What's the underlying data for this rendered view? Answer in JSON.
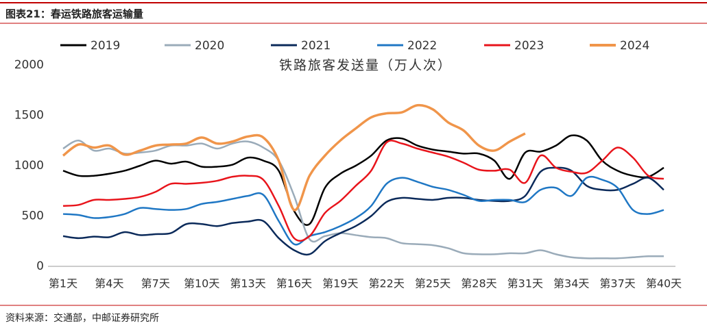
{
  "header": "图表21：春运铁路旅客运输量",
  "source": "资料来源：交通部，中邮证券研究所",
  "chart_data": {
    "type": "line",
    "title": "铁路旅客发送量（万人次）",
    "categories": [
      "第1天",
      null,
      null,
      "第4天",
      null,
      null,
      "第7天",
      null,
      null,
      "第10天",
      null,
      null,
      "第13天",
      null,
      null,
      "第16天",
      null,
      null,
      "第19天",
      null,
      null,
      "第22天",
      null,
      null,
      "第25天",
      null,
      null,
      "第28天",
      null,
      null,
      "第31天",
      null,
      null,
      "第34天",
      null,
      null,
      "第37天",
      null,
      null,
      "第40天"
    ],
    "ylim": [
      0,
      2000
    ],
    "yticks": [
      0,
      500,
      1000,
      1500,
      2000
    ],
    "grid": false,
    "series": [
      {
        "name": "2019",
        "color": "#000000",
        "values": [
          950,
          900,
          900,
          920,
          950,
          1000,
          1050,
          1020,
          1040,
          990,
          990,
          1010,
          1080,
          1050,
          950,
          550,
          420,
          780,
          920,
          1000,
          1100,
          1250,
          1270,
          1200,
          1160,
          1140,
          1120,
          1120,
          1050,
          870,
          1130,
          1140,
          1200,
          1300,
          1250,
          1050,
          950,
          900,
          890,
          980
        ]
      },
      {
        "name": "2020",
        "color": "#9aabb9",
        "values": [
          1170,
          1250,
          1150,
          1170,
          1120,
          1130,
          1150,
          1200,
          1200,
          1220,
          1170,
          1220,
          1240,
          1180,
          1050,
          700,
          270,
          300,
          330,
          310,
          290,
          280,
          230,
          220,
          210,
          180,
          130,
          120,
          120,
          130,
          130,
          160,
          120,
          90,
          80,
          80,
          80,
          90,
          100,
          100
        ]
      },
      {
        "name": "2021",
        "color": "#0b2a5a",
        "values": [
          300,
          280,
          295,
          290,
          340,
          310,
          320,
          330,
          420,
          420,
          400,
          430,
          445,
          450,
          280,
          160,
          120,
          250,
          330,
          400,
          500,
          640,
          680,
          670,
          660,
          680,
          680,
          660,
          650,
          650,
          700,
          940,
          980,
          950,
          800,
          760,
          760,
          820,
          880,
          760
        ]
      },
      {
        "name": "2022",
        "color": "#1f77c4",
        "values": [
          520,
          510,
          480,
          490,
          520,
          580,
          570,
          560,
          570,
          620,
          640,
          670,
          700,
          710,
          450,
          220,
          300,
          340,
          400,
          480,
          600,
          820,
          880,
          840,
          790,
          760,
          710,
          650,
          660,
          660,
          640,
          760,
          780,
          700,
          880,
          860,
          780,
          560,
          520,
          560
        ]
      },
      {
        "name": "2023",
        "color": "#e8141b",
        "values": [
          600,
          610,
          660,
          660,
          670,
          690,
          740,
          820,
          820,
          830,
          850,
          890,
          900,
          860,
          600,
          280,
          300,
          530,
          650,
          800,
          950,
          1230,
          1220,
          1170,
          1130,
          1090,
          1030,
          960,
          950,
          960,
          830,
          1100,
          980,
          940,
          930,
          1050,
          1180,
          1080,
          900,
          870
        ]
      },
      {
        "name": "2024",
        "color": "#f0954a",
        "values": [
          1100,
          1210,
          1180,
          1200,
          1110,
          1150,
          1200,
          1210,
          1220,
          1280,
          1220,
          1240,
          1290,
          1280,
          1050,
          560,
          900,
          1100,
          1250,
          1370,
          1480,
          1520,
          1530,
          1600,
          1560,
          1430,
          1350,
          1200,
          1150,
          1240,
          1320,
          null,
          null,
          null,
          null,
          null,
          null,
          null,
          null,
          null
        ]
      }
    ]
  }
}
